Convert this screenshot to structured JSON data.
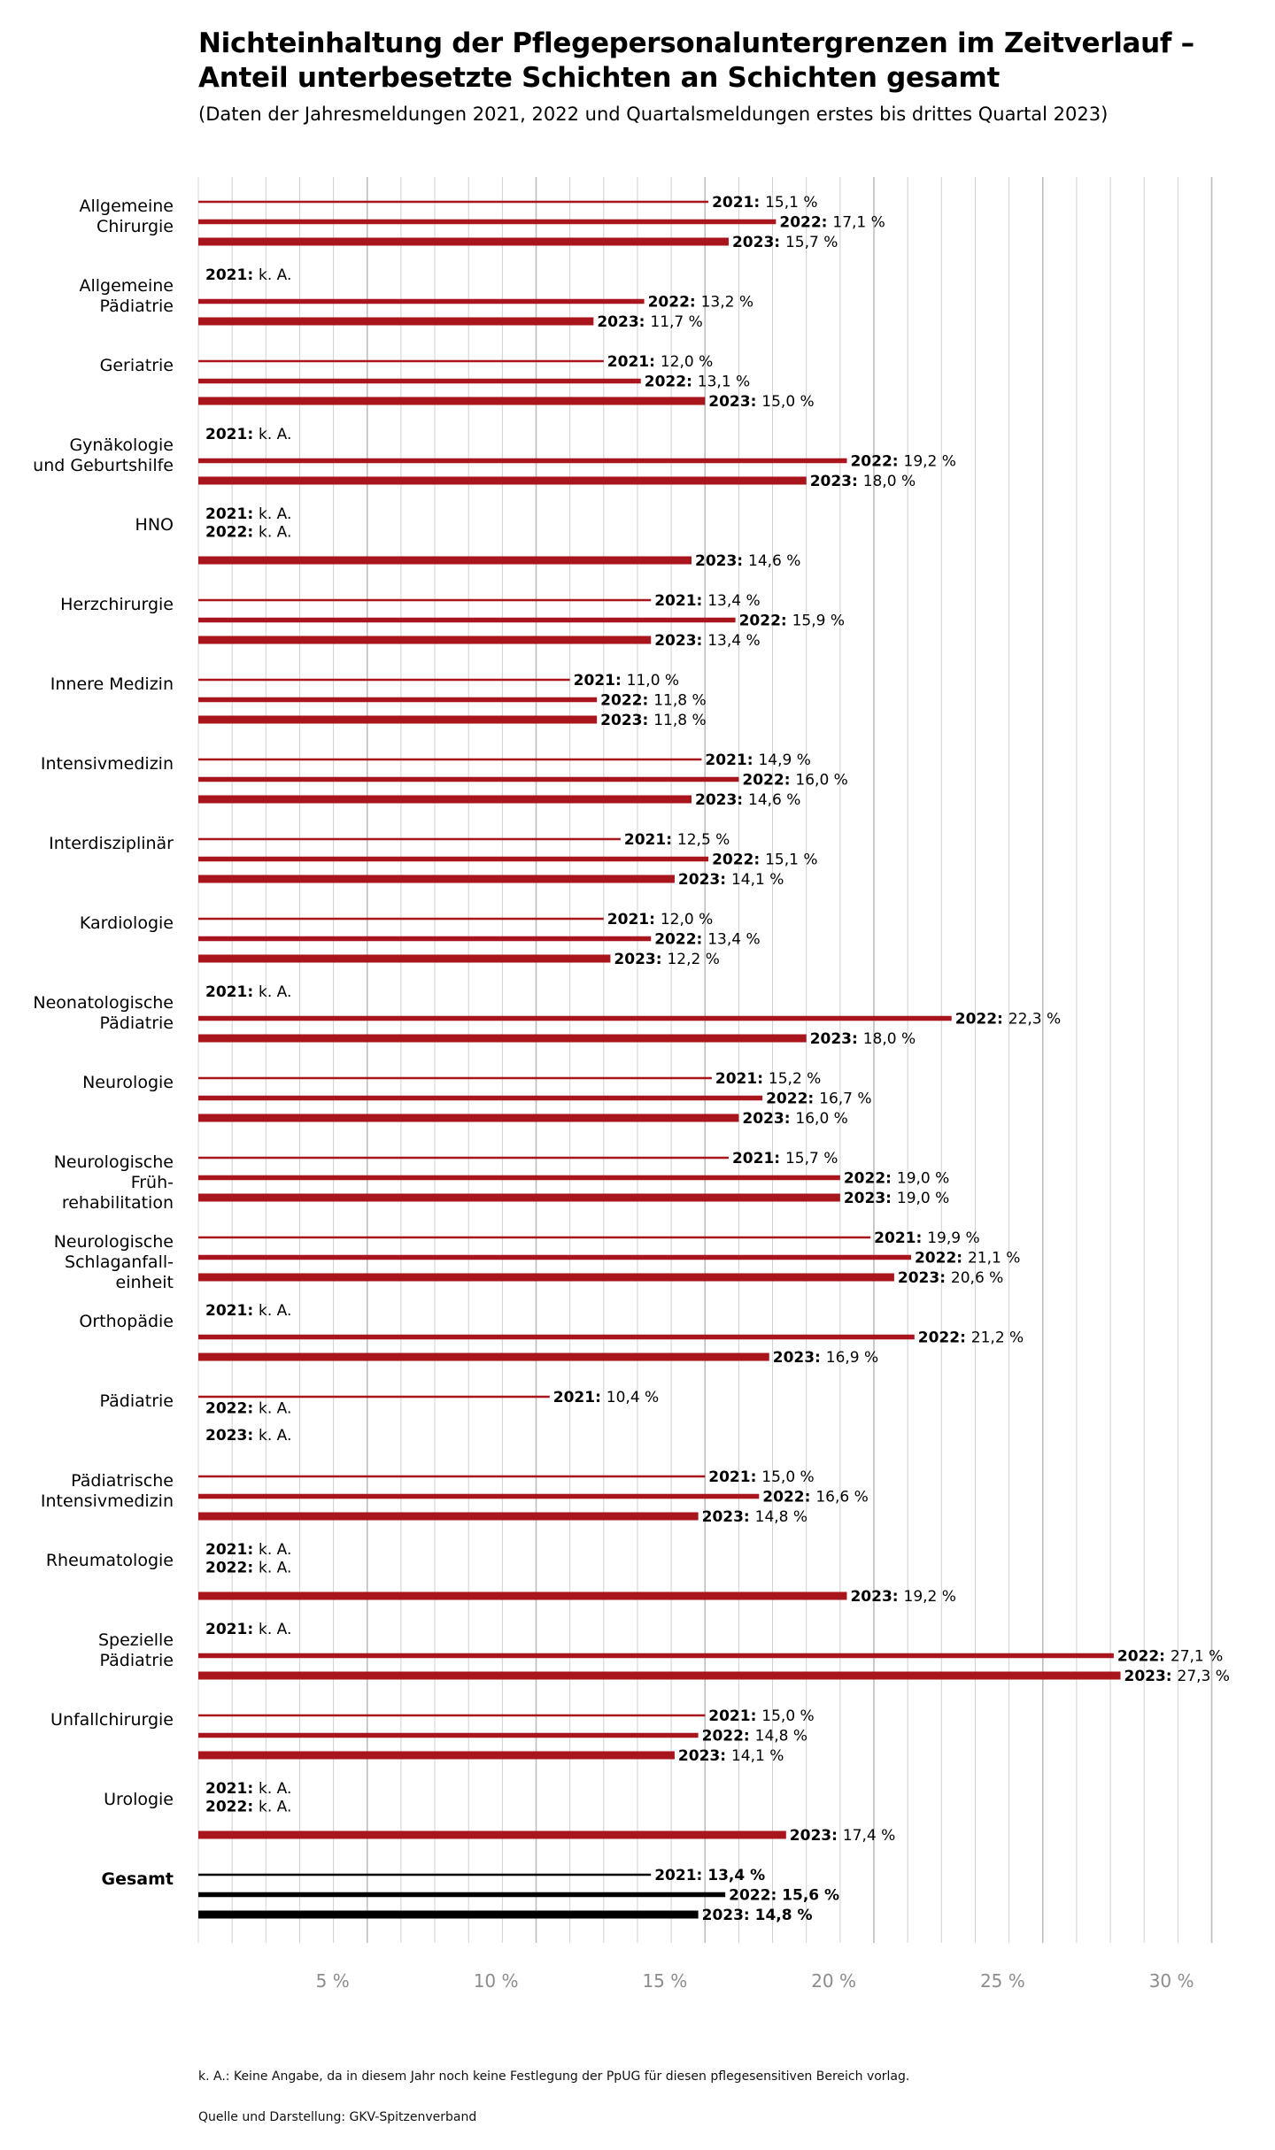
{
  "title_line1": "Nichteinhaltung der Pflegepersonaluntergrenzen im Zeitverlauf –",
  "title_line2": "Anteil unterbesetzte Schichten an Schichten gesamt",
  "subtitle": "(Daten der Jahresmeldungen 2021, 2022 und Quartalsmeldungen erstes bis drittes Quartal 2023)",
  "footnote": "k. A.: Keine Angabe, da in diesem Jahr noch keine Festlegung der PpUG für diesen pflegesensitiven Bereich vorlag.",
  "source": "Quelle und Darstellung: GKV-Spitzenverband",
  "colors": {
    "bar": "#a8151d",
    "total": "#000000",
    "grid": "#d0d0d0",
    "tick_text": "#8c8c8c"
  },
  "chart_data": {
    "type": "bar",
    "orientation": "horizontal",
    "title": "Nichteinhaltung der Pflegepersonaluntergrenzen im Zeitverlauf – Anteil unterbesetzte Schichten an Schichten gesamt",
    "xlabel": "",
    "ylabel": "",
    "xlim": [
      0,
      30
    ],
    "grid": true,
    "xticks": [
      {
        "value": 5,
        "label": "5 %"
      },
      {
        "value": 10,
        "label": "10 %"
      },
      {
        "value": 15,
        "label": "15 %"
      },
      {
        "value": 20,
        "label": "20 %"
      },
      {
        "value": 25,
        "label": "25 %"
      },
      {
        "value": 30,
        "label": "30 %"
      }
    ],
    "series_names": [
      "2021",
      "2022",
      "2023"
    ],
    "missing_label": "k. A.",
    "categories": [
      {
        "name": [
          "Allgemeine",
          "Chirurgie"
        ],
        "values": [
          {
            "year": "2021",
            "value": 15.1,
            "label": "15,1 %"
          },
          {
            "year": "2022",
            "value": 17.1,
            "label": "17,1 %"
          },
          {
            "year": "2023",
            "value": 15.7,
            "label": "15,7 %"
          }
        ]
      },
      {
        "name": [
          "Allgemeine",
          "Pädiatrie"
        ],
        "values": [
          {
            "year": "2021",
            "value": null,
            "label": "k. A."
          },
          {
            "year": "2022",
            "value": 13.2,
            "label": "13,2 %"
          },
          {
            "year": "2023",
            "value": 11.7,
            "label": "11,7 %"
          }
        ]
      },
      {
        "name": [
          "Geriatrie"
        ],
        "values": [
          {
            "year": "2021",
            "value": 12.0,
            "label": "12,0 %"
          },
          {
            "year": "2022",
            "value": 13.1,
            "label": "13,1 %"
          },
          {
            "year": "2023",
            "value": 15.0,
            "label": "15,0 %"
          }
        ]
      },
      {
        "name": [
          "Gynäkologie",
          "und Geburtshilfe"
        ],
        "values": [
          {
            "year": "2021",
            "value": null,
            "label": "k. A."
          },
          {
            "year": "2022",
            "value": 19.2,
            "label": "19,2 %"
          },
          {
            "year": "2023",
            "value": 18.0,
            "label": "18,0 %"
          }
        ]
      },
      {
        "name": [
          "HNO"
        ],
        "values": [
          {
            "year": "2021",
            "value": null,
            "label": "k. A."
          },
          {
            "year": "2022",
            "value": null,
            "label": "k. A."
          },
          {
            "year": "2023",
            "value": 14.6,
            "label": "14,6 %"
          }
        ]
      },
      {
        "name": [
          "Herzchirurgie"
        ],
        "values": [
          {
            "year": "2021",
            "value": 13.4,
            "label": "13,4 %"
          },
          {
            "year": "2022",
            "value": 15.9,
            "label": "15,9 %"
          },
          {
            "year": "2023",
            "value": 13.4,
            "label": "13,4 %"
          }
        ]
      },
      {
        "name": [
          "Innere Medizin"
        ],
        "values": [
          {
            "year": "2021",
            "value": 11.0,
            "label": "11,0 %"
          },
          {
            "year": "2022",
            "value": 11.8,
            "label": "11,8 %"
          },
          {
            "year": "2023",
            "value": 11.8,
            "label": "11,8 %"
          }
        ]
      },
      {
        "name": [
          "Intensivmedizin"
        ],
        "values": [
          {
            "year": "2021",
            "value": 14.9,
            "label": "14,9 %"
          },
          {
            "year": "2022",
            "value": 16.0,
            "label": "16,0 %"
          },
          {
            "year": "2023",
            "value": 14.6,
            "label": "14,6 %"
          }
        ]
      },
      {
        "name": [
          "Interdisziplinär"
        ],
        "values": [
          {
            "year": "2021",
            "value": 12.5,
            "label": "12,5 %"
          },
          {
            "year": "2022",
            "value": 15.1,
            "label": "15,1 %"
          },
          {
            "year": "2023",
            "value": 14.1,
            "label": "14,1 %"
          }
        ]
      },
      {
        "name": [
          "Kardiologie"
        ],
        "values": [
          {
            "year": "2021",
            "value": 12.0,
            "label": "12,0 %"
          },
          {
            "year": "2022",
            "value": 13.4,
            "label": "13,4 %"
          },
          {
            "year": "2023",
            "value": 12.2,
            "label": "12,2 %"
          }
        ]
      },
      {
        "name": [
          "Neonatologische",
          "Pädiatrie"
        ],
        "values": [
          {
            "year": "2021",
            "value": null,
            "label": "k. A."
          },
          {
            "year": "2022",
            "value": 22.3,
            "label": "22,3 %"
          },
          {
            "year": "2023",
            "value": 18.0,
            "label": "18,0 %"
          }
        ]
      },
      {
        "name": [
          "Neurologie"
        ],
        "values": [
          {
            "year": "2021",
            "value": 15.2,
            "label": "15,2 %"
          },
          {
            "year": "2022",
            "value": 16.7,
            "label": "16,7 %"
          },
          {
            "year": "2023",
            "value": 16.0,
            "label": "16,0 %"
          }
        ]
      },
      {
        "name": [
          "Neurologische",
          "Früh-",
          "rehabilitation"
        ],
        "values": [
          {
            "year": "2021",
            "value": 15.7,
            "label": "15,7 %"
          },
          {
            "year": "2022",
            "value": 19.0,
            "label": "19,0 %"
          },
          {
            "year": "2023",
            "value": 19.0,
            "label": "19,0 %"
          }
        ]
      },
      {
        "name": [
          "Neurologische",
          "Schlaganfall-",
          "einheit"
        ],
        "values": [
          {
            "year": "2021",
            "value": 19.9,
            "label": "19,9 %"
          },
          {
            "year": "2022",
            "value": 21.1,
            "label": "21,1 %"
          },
          {
            "year": "2023",
            "value": 20.6,
            "label": "20,6 %"
          }
        ]
      },
      {
        "name": [
          "Orthopädie"
        ],
        "values": [
          {
            "year": "2021",
            "value": null,
            "label": "k. A."
          },
          {
            "year": "2022",
            "value": 21.2,
            "label": "21,2 %"
          },
          {
            "year": "2023",
            "value": 16.9,
            "label": "16,9 %"
          }
        ]
      },
      {
        "name": [
          "Pädiatrie"
        ],
        "values": [
          {
            "year": "2021",
            "value": 10.4,
            "label": "10,4 %"
          },
          {
            "year": "2022",
            "value": null,
            "label": "k. A."
          },
          {
            "year": "2023",
            "value": null,
            "label": "k. A."
          }
        ]
      },
      {
        "name": [
          "Pädiatrische",
          "Intensivmedizin"
        ],
        "values": [
          {
            "year": "2021",
            "value": 15.0,
            "label": "15,0 %"
          },
          {
            "year": "2022",
            "value": 16.6,
            "label": "16,6 %"
          },
          {
            "year": "2023",
            "value": 14.8,
            "label": "14,8 %"
          }
        ]
      },
      {
        "name": [
          "Rheumatologie"
        ],
        "values": [
          {
            "year": "2021",
            "value": null,
            "label": "k. A."
          },
          {
            "year": "2022",
            "value": null,
            "label": "k. A."
          },
          {
            "year": "2023",
            "value": 19.2,
            "label": "19,2 %"
          }
        ]
      },
      {
        "name": [
          "Spezielle",
          "Pädiatrie"
        ],
        "values": [
          {
            "year": "2021",
            "value": null,
            "label": "k. A."
          },
          {
            "year": "2022",
            "value": 27.1,
            "label": "27,1 %"
          },
          {
            "year": "2023",
            "value": 27.3,
            "label": "27,3 %"
          }
        ]
      },
      {
        "name": [
          "Unfallchirurgie"
        ],
        "values": [
          {
            "year": "2021",
            "value": 15.0,
            "label": "15,0 %"
          },
          {
            "year": "2022",
            "value": 14.8,
            "label": "14,8 %"
          },
          {
            "year": "2023",
            "value": 14.1,
            "label": "14,1 %"
          }
        ]
      },
      {
        "name": [
          "Urologie"
        ],
        "values": [
          {
            "year": "2021",
            "value": null,
            "label": "k. A."
          },
          {
            "year": "2022",
            "value": null,
            "label": "k. A."
          },
          {
            "year": "2023",
            "value": 17.4,
            "label": "17,4 %"
          }
        ]
      },
      {
        "name": [
          "Gesamt"
        ],
        "total": true,
        "values": [
          {
            "year": "2021",
            "value": 13.4,
            "label": "13,4 %"
          },
          {
            "year": "2022",
            "value": 15.6,
            "label": "15,6 %"
          },
          {
            "year": "2023",
            "value": 14.8,
            "label": "14,8 %"
          }
        ]
      }
    ]
  }
}
